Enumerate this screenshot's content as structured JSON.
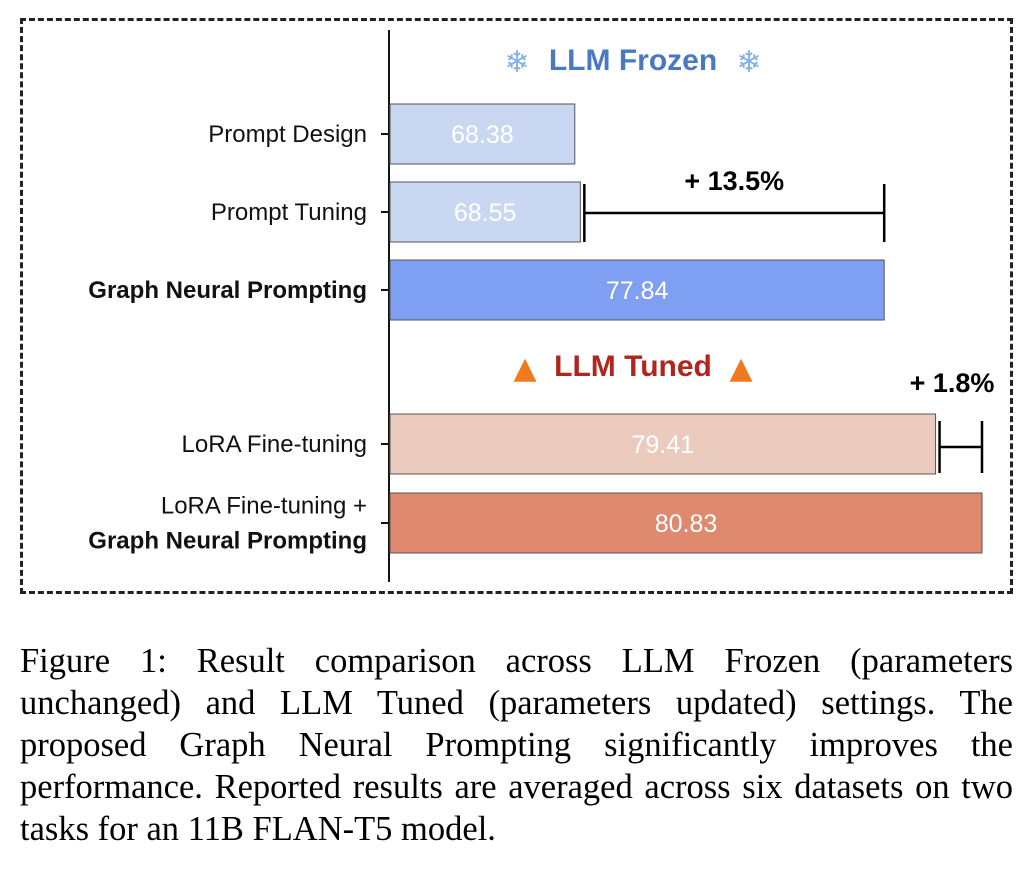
{
  "chart_data": {
    "type": "bar",
    "orientation": "horizontal",
    "groups": [
      {
        "title": "LLM Frozen",
        "icon": "snowflake-icon",
        "title_color": "#4a78c2",
        "bars": [
          {
            "label_lines": [
              "Prompt Design"
            ],
            "bold": [
              false
            ],
            "value": 68.38,
            "value_label": "68.38",
            "color": "#c9d7f3"
          },
          {
            "label_lines": [
              "Prompt Tuning"
            ],
            "bold": [
              false
            ],
            "value": 68.55,
            "value_label": "68.55",
            "color": "#c9d7f3"
          },
          {
            "label_lines": [
              "Graph Neural Prompting"
            ],
            "bold": [
              true
            ],
            "value": 77.84,
            "value_label": "77.84",
            "color": "#7f9ff2"
          }
        ]
      },
      {
        "title": "LLM Tuned",
        "icon": "fire-icon",
        "title_color": "#b0261c",
        "bars": [
          {
            "label_lines": [
              "LoRA Fine-tuning"
            ],
            "bold": [
              false
            ],
            "value": 79.41,
            "value_label": "79.41",
            "color": "#ebcbbd"
          },
          {
            "label_lines": [
              "LoRA Fine-tuning +",
              "Graph Neural Prompting"
            ],
            "bold": [
              false,
              true
            ],
            "value": 80.83,
            "value_label": "80.83",
            "color": "#df8a6f"
          }
        ]
      }
    ],
    "annotations": [
      {
        "text": "+ 13.5%",
        "from_value": 68.55,
        "to_value": 77.84
      },
      {
        "text": "+ 1.8%",
        "from_value": 79.41,
        "to_value": 80.83
      }
    ],
    "xlim": [
      62.7,
      80.83
    ],
    "grid": false,
    "legend": "none"
  },
  "caption": "Figure 1: Result comparison across LLM Frozen (parameters unchanged) and LLM Tuned (parameters updated) settings. The proposed Graph Neural Prompting significantly improves the performance. Reported results are averaged across six datasets on two tasks for an 11B FLAN-T5 model."
}
